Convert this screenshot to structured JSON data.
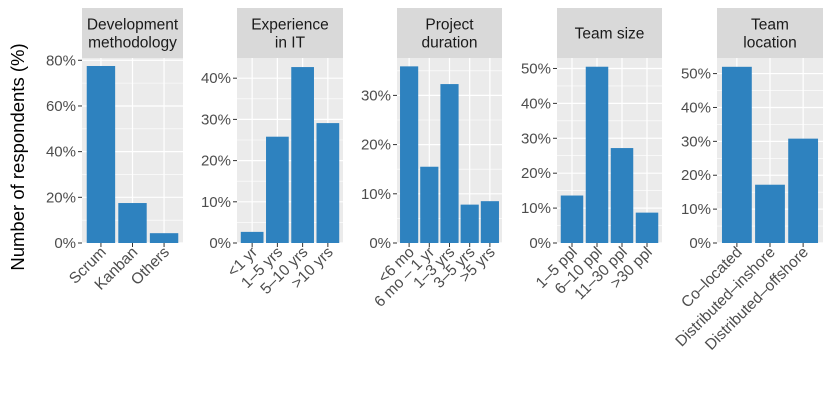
{
  "figure": {
    "ylabel": "Number of respondents (%)",
    "colors": {
      "bar": "#2e82bf",
      "panel": "#ebebeb",
      "grid": "#ffffff",
      "strip": "#d9d9d9",
      "strip_text": "#1a1a1a",
      "tick_text": "#4d4d4d",
      "tick_mark": "#333333"
    }
  },
  "chart_data": [
    {
      "type": "bar",
      "title_lines": [
        "Development",
        "methodology"
      ],
      "categories": [
        "Scrum",
        "Kanban",
        "Others"
      ],
      "values": [
        77.5,
        17.5,
        4.3
      ],
      "ylim": [
        0,
        81
      ],
      "ticks": [
        0,
        20,
        40,
        60,
        80
      ],
      "tick_labels": [
        "0%",
        "20%",
        "40%",
        "60%",
        "80%"
      ]
    },
    {
      "type": "bar",
      "title_lines": [
        "Experience",
        "in IT"
      ],
      "categories": [
        "<1 yr",
        "1–5 yrs",
        "5–10 yrs",
        ">10 yrs"
      ],
      "values": [
        2.7,
        25.8,
        42.7,
        29.1
      ],
      "ylim": [
        0,
        44.9
      ],
      "ticks": [
        0,
        10,
        20,
        30,
        40
      ],
      "tick_labels": [
        "0%",
        "10%",
        "20%",
        "30%",
        "40%"
      ]
    },
    {
      "type": "bar",
      "title_lines": [
        "Project",
        "duration"
      ],
      "categories": [
        "<6 mo",
        "6 mo – 1 yr",
        "1–3 yrs",
        "3–5 yrs",
        ">5 yrs"
      ],
      "values": [
        35.9,
        15.5,
        32.3,
        7.8,
        8.5
      ],
      "ylim": [
        0,
        37.6
      ],
      "ticks": [
        0,
        10,
        20,
        30
      ],
      "tick_labels": [
        "0%",
        "10%",
        "20%",
        "30%"
      ]
    },
    {
      "type": "bar",
      "title_lines": [
        "Team size"
      ],
      "categories": [
        "1–5 ppl",
        "6–10 ppl",
        "11–30 ppl",
        ">30 ppl"
      ],
      "values": [
        13.6,
        50.5,
        27.2,
        8.7
      ],
      "ylim": [
        0,
        53
      ],
      "ticks": [
        0,
        10,
        20,
        30,
        40,
        50
      ],
      "tick_labels": [
        "0%",
        "10%",
        "20%",
        "30%",
        "40%",
        "50%"
      ]
    },
    {
      "type": "bar",
      "title_lines": [
        "Team",
        "location"
      ],
      "categories": [
        "Co–located",
        "Distributed–inshore",
        "Distributed–offshore"
      ],
      "values": [
        52.0,
        17.2,
        30.8
      ],
      "ylim": [
        0,
        54.6
      ],
      "ticks": [
        0,
        10,
        20,
        30,
        40,
        50
      ],
      "tick_labels": [
        "0%",
        "10%",
        "20%",
        "30%",
        "40%",
        "50%"
      ]
    }
  ]
}
